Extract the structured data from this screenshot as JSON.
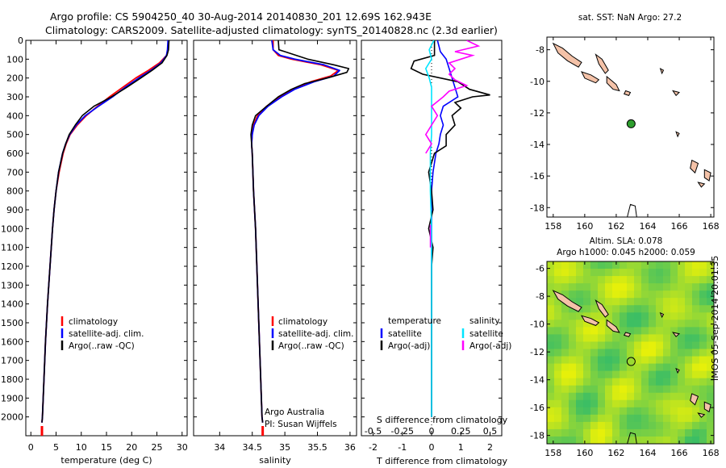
{
  "header": {
    "line1": "Argo profile: CS 5904250_40 30-Aug-2014 20140830_201 12.69S 162.943E",
    "line2": "Climatology: CARS2009. Satellite-adjusted climatology: synTS_20140828.nc (2.3d earlier)"
  },
  "stamp": "IMOS 05-Sep-2014 20:01:35",
  "colors": {
    "climatology": "#ff0000",
    "satellite": "#0000ff",
    "argo": "#000000",
    "sal_sat": "#00e5ff",
    "sal_argo": "#ff00ff",
    "land": "#f4c2a8",
    "float": "#2e9e2e"
  },
  "chart_data": [
    {
      "type": "line",
      "xlabel": "temperature (deg C)",
      "xlim": [
        -1,
        31
      ],
      "ylim": [
        2100,
        0
      ],
      "xticks": [
        0,
        5,
        10,
        15,
        20,
        25,
        30
      ],
      "yticks": [
        0,
        100,
        200,
        300,
        400,
        500,
        600,
        700,
        800,
        900,
        1000,
        1100,
        1200,
        1300,
        1400,
        1500,
        1600,
        1700,
        1800,
        1900,
        2000
      ],
      "legend": [
        "climatology",
        "satellite-adj. clim.",
        "Argo(..raw -QC)"
      ],
      "series": [
        {
          "name": "climatology",
          "depth": [
            0,
            50,
            80,
            120,
            160,
            200,
            250,
            300,
            350,
            400,
            450,
            500,
            550,
            600,
            700,
            800,
            900,
            1000,
            1200,
            1400,
            1600,
            1800,
            2000,
            2030
          ],
          "values": [
            27.3,
            27.2,
            26.9,
            25.5,
            23.3,
            20.8,
            18.2,
            15.6,
            13.2,
            11.0,
            9.2,
            7.8,
            7.0,
            6.4,
            5.6,
            5.0,
            4.6,
            4.3,
            3.8,
            3.3,
            2.9,
            2.6,
            2.3,
            2.2
          ]
        },
        {
          "name": "satellite-adj. clim.",
          "depth": [
            0,
            50,
            80,
            120,
            160,
            200,
            250,
            300,
            350,
            400,
            450,
            500,
            550,
            600,
            700,
            800,
            900,
            1000,
            1200,
            1400,
            1600,
            1800,
            2000,
            2030
          ],
          "values": [
            27.2,
            27.1,
            26.9,
            25.8,
            23.8,
            21.4,
            18.7,
            16.2,
            13.4,
            10.8,
            9.0,
            7.7,
            6.9,
            6.3,
            5.5,
            5.0,
            4.6,
            4.3,
            3.8,
            3.3,
            2.9,
            2.6,
            2.3,
            2.2
          ]
        },
        {
          "name": "Argo(..raw -QC)",
          "depth": [
            0,
            50,
            80,
            120,
            160,
            200,
            250,
            300,
            350,
            400,
            450,
            500,
            550,
            600,
            700,
            800,
            900,
            1000,
            1200,
            1400,
            1600,
            1800,
            2000,
            2030
          ],
          "values": [
            27.4,
            27.3,
            27.0,
            26.0,
            24.0,
            21.8,
            19.0,
            16.0,
            12.5,
            10.2,
            8.8,
            7.6,
            6.9,
            6.3,
            5.5,
            5.0,
            4.6,
            4.3,
            3.8,
            3.3,
            2.9,
            2.6,
            2.3,
            2.2
          ]
        }
      ]
    },
    {
      "type": "line",
      "xlabel": "salinity",
      "xlim": [
        33.6,
        36.1
      ],
      "ylim": [
        2100,
        0
      ],
      "xticks": [
        34,
        34.5,
        35,
        35.5,
        36
      ],
      "legend": [
        "climatology",
        "satellite-adj. clim.",
        "Argo(..raw -QC)"
      ],
      "annotation": [
        "Argo Australia",
        "PI: Susan Wijffels"
      ],
      "series": [
        {
          "name": "climatology",
          "depth": [
            0,
            50,
            80,
            100,
            130,
            160,
            190,
            220,
            260,
            300,
            350,
            400,
            450,
            500,
            550,
            600,
            700,
            800,
            1000,
            1200,
            1500,
            1800,
            2000,
            2030
          ],
          "values": [
            34.82,
            34.82,
            34.9,
            35.1,
            35.55,
            35.82,
            35.7,
            35.4,
            35.12,
            34.92,
            34.72,
            34.58,
            34.52,
            34.5,
            34.49,
            34.5,
            34.51,
            34.52,
            34.55,
            34.57,
            34.6,
            34.63,
            34.65,
            34.66
          ]
        },
        {
          "name": "satellite-adj. clim.",
          "depth": [
            0,
            50,
            80,
            100,
            130,
            160,
            190,
            220,
            260,
            300,
            350,
            400,
            450,
            500,
            550,
            600,
            700,
            800,
            1000,
            1200,
            1500,
            1800,
            2000,
            2030
          ],
          "values": [
            34.8,
            34.82,
            34.93,
            35.15,
            35.6,
            35.84,
            35.75,
            35.45,
            35.15,
            34.95,
            34.74,
            34.6,
            34.53,
            34.5,
            34.49,
            34.5,
            34.51,
            34.52,
            34.55,
            34.57,
            34.6,
            34.63,
            34.65,
            34.66
          ]
        },
        {
          "name": "Argo(..raw -QC)",
          "depth": [
            0,
            50,
            60,
            100,
            130,
            150,
            170,
            200,
            230,
            260,
            300,
            350,
            400,
            450,
            500,
            550,
            600,
            700,
            800,
            1000,
            1200,
            1500,
            1800,
            2000,
            2030
          ],
          "values": [
            34.9,
            34.91,
            35.0,
            35.35,
            35.75,
            35.98,
            35.95,
            35.65,
            35.3,
            35.1,
            34.9,
            34.72,
            34.55,
            34.5,
            34.48,
            34.49,
            34.5,
            34.51,
            34.52,
            34.55,
            34.57,
            34.6,
            34.63,
            34.65,
            34.66
          ]
        }
      ]
    },
    {
      "type": "line",
      "xlabel": "T difference from climatology",
      "xlabel2": "S difference from climatology",
      "xlim": [
        -2.4,
        2.4
      ],
      "ylim": [
        2100,
        0
      ],
      "xticks": [
        -2,
        -1,
        0,
        1,
        2
      ],
      "xticks2": [
        "-0.5",
        "-0.25",
        "0",
        "0.25",
        "0.5"
      ],
      "legend_groups": {
        "temperature": [
          "satellite",
          "Argo(-adj)"
        ],
        "salinity": [
          "satellite",
          "Argo(-adj)"
        ]
      },
      "series": [
        {
          "name": "temperature satellite",
          "depth": [
            0,
            60,
            100,
            150,
            200,
            250,
            300,
            350,
            400,
            450,
            500,
            550,
            600,
            700,
            800,
            900,
            1000,
            1200,
            1500,
            1800,
            2000
          ],
          "values": [
            0.2,
            0.3,
            0.5,
            0.6,
            0.7,
            0.8,
            0.9,
            0.4,
            0.3,
            0.4,
            0.3,
            0.25,
            0.15,
            0.05,
            0.0,
            0.0,
            0.0,
            0.0,
            0.0,
            0.0,
            0.0
          ]
        },
        {
          "name": "temperature Argo(-adj)",
          "depth": [
            0,
            50,
            80,
            110,
            150,
            180,
            220,
            260,
            290,
            300,
            330,
            360,
            400,
            450,
            500,
            560,
            600,
            700,
            800,
            900,
            1000,
            1100,
            1200,
            1400,
            1600,
            1800,
            2000
          ],
          "values": [
            0.1,
            0.1,
            0.1,
            -0.6,
            -0.7,
            -0.3,
            0.9,
            1.3,
            2.0,
            1.4,
            0.8,
            1.0,
            0.7,
            0.8,
            0.5,
            0.5,
            0.1,
            -0.1,
            0.0,
            0.05,
            -0.1,
            0.05,
            0.0,
            0.0,
            0.0,
            0.0,
            0.0
          ]
        },
        {
          "name": "salinity satellite",
          "depth": [
            0,
            50,
            100,
            150,
            200,
            250,
            300,
            400,
            500,
            600,
            800,
            1000,
            1500,
            2000
          ],
          "values": [
            0.02,
            -0.02,
            0.0,
            -0.05,
            -0.02,
            0.0,
            0.0,
            0.0,
            0.0,
            -0.01,
            -0.01,
            0.0,
            0.0,
            0.0
          ]
        },
        {
          "name": "salinity Argo(-adj)",
          "depth": [
            0,
            30,
            60,
            80,
            100,
            120,
            150,
            180,
            210,
            240,
            270,
            300,
            350,
            400,
            450,
            500,
            550,
            600
          ],
          "values": [
            0.3,
            0.4,
            0.2,
            0.35,
            0.25,
            0.15,
            0.2,
            0.15,
            0.2,
            0.3,
            0.15,
            0.1,
            0.0,
            0.05,
            0.0,
            -0.05,
            0.0,
            -0.05
          ]
        }
      ]
    },
    {
      "type": "scatter",
      "title": "sat. SST: NaN Argo: 27.2",
      "xlim": [
        157.6,
        168.2
      ],
      "ylim": [
        -18.6,
        -7.2
      ],
      "xticks": [
        158,
        160,
        162,
        164,
        166,
        168
      ],
      "yticks": [
        -8,
        -10,
        -12,
        -14,
        -16,
        -18
      ],
      "float": {
        "lon": 162.943,
        "lat": -12.69
      }
    },
    {
      "type": "heatmap",
      "title": "Altim. SLA: 0.078",
      "subtitle": "Argo h1000: 0.045 h2000: 0.059",
      "xlim": [
        157.6,
        168.2
      ],
      "ylim": [
        -18.6,
        -5.5
      ],
      "xticks": [
        158,
        160,
        162,
        164,
        166,
        168
      ],
      "yticks": [
        -6,
        -8,
        -10,
        -12,
        -14,
        -16,
        -18
      ],
      "float": {
        "lon": 162.943,
        "lat": -12.69
      }
    }
  ]
}
